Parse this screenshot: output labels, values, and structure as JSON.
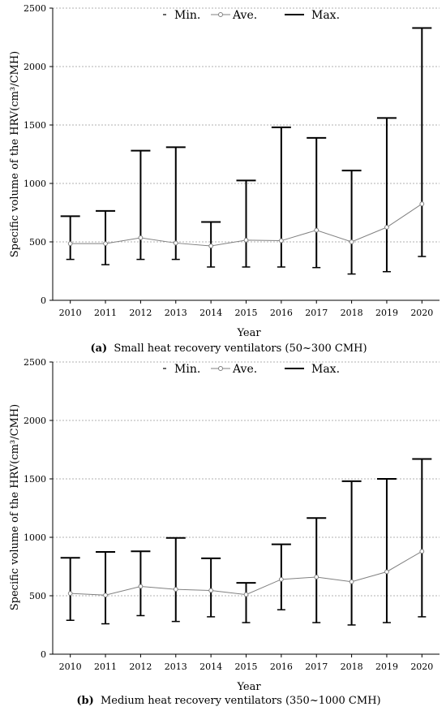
{
  "legend": {
    "min": "Min.",
    "ave": "Ave.",
    "max": "Max."
  },
  "colors": {
    "ave_line": "#808080",
    "range_bar": "#000000",
    "grid": "#999999"
  },
  "chart_data": [
    {
      "type": "line",
      "caption_letter": "(a)",
      "caption_text": "Small heat recovery ventilators (50~300 CMH)",
      "xlabel": "Year",
      "ylabel": "Specific volume of the HRV(cm³/CMH)",
      "ylim": [
        0,
        2500
      ],
      "yticks": [
        0,
        500,
        1000,
        1500,
        2000,
        2500
      ],
      "grid": "horizontal dotted",
      "legend_placement": "top",
      "categories": [
        "2010",
        "2011",
        "2012",
        "2013",
        "2014",
        "2015",
        "2016",
        "2017",
        "2018",
        "2019",
        "2020"
      ],
      "series": [
        {
          "name": "Min.",
          "values": [
            350,
            305,
            350,
            350,
            285,
            285,
            285,
            280,
            225,
            245,
            375
          ]
        },
        {
          "name": "Ave.",
          "values": [
            485,
            485,
            535,
            490,
            465,
            515,
            510,
            600,
            500,
            625,
            825
          ]
        },
        {
          "name": "Max.",
          "values": [
            720,
            765,
            1280,
            1310,
            670,
            1025,
            1480,
            1390,
            1110,
            1560,
            2330
          ]
        }
      ]
    },
    {
      "type": "line",
      "caption_letter": "(b)",
      "caption_text": "Medium heat recovery ventilators (350~1000 CMH)",
      "xlabel": "Year",
      "ylabel": "Specific volume of the HRV(cm³/CMH)",
      "ylim": [
        0,
        2500
      ],
      "yticks": [
        0,
        500,
        1000,
        1500,
        2000,
        2500
      ],
      "grid": "horizontal dotted",
      "legend_placement": "top",
      "categories": [
        "2010",
        "2011",
        "2012",
        "2013",
        "2014",
        "2015",
        "2016",
        "2017",
        "2018",
        "2019",
        "2020"
      ],
      "series": [
        {
          "name": "Min.",
          "values": [
            290,
            260,
            330,
            280,
            320,
            270,
            380,
            270,
            250,
            270,
            320
          ]
        },
        {
          "name": "Ave.",
          "values": [
            520,
            505,
            580,
            555,
            545,
            510,
            640,
            660,
            620,
            705,
            880
          ]
        },
        {
          "name": "Max.",
          "values": [
            825,
            875,
            880,
            995,
            820,
            610,
            940,
            1165,
            1480,
            1500,
            1670
          ]
        }
      ]
    }
  ]
}
